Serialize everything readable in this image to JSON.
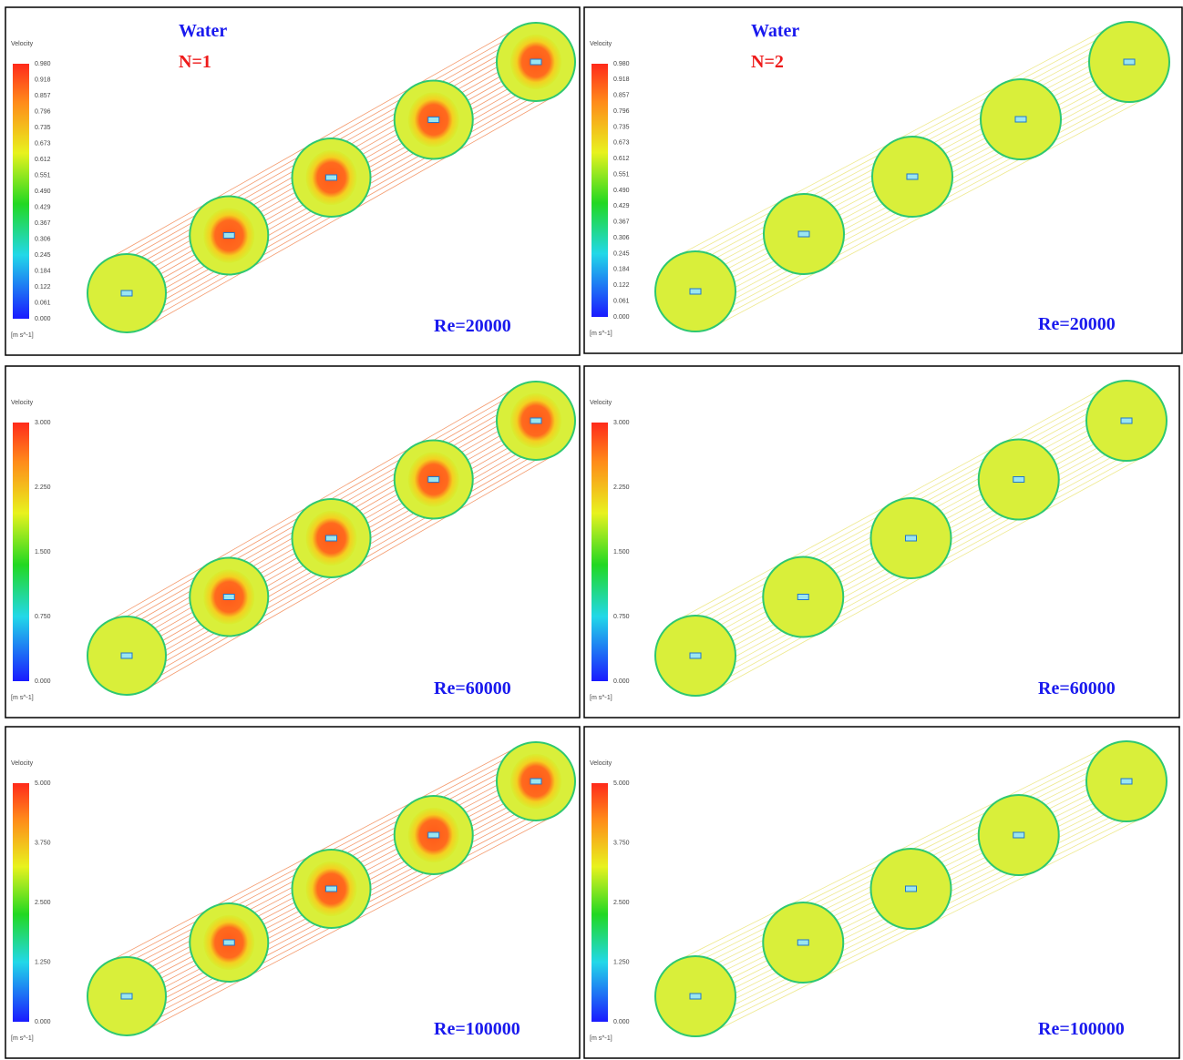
{
  "panels": [
    {
      "fluid": "Water",
      "n_label": "N=1",
      "legend_title": "Velocity",
      "legend_ticks": [
        "0.980",
        "0.918",
        "0.857",
        "0.796",
        "0.735",
        "0.673",
        "0.612",
        "0.551",
        "0.490",
        "0.429",
        "0.367",
        "0.306",
        "0.245",
        "0.184",
        "0.122",
        "0.061",
        "0.000"
      ],
      "legend_unit": "[m s^-1]",
      "re_label": "Re=20000"
    },
    {
      "fluid": "Water",
      "n_label": "N=2",
      "legend_title": "Velocity",
      "legend_ticks": [
        "0.980",
        "0.918",
        "0.857",
        "0.796",
        "0.735",
        "0.673",
        "0.612",
        "0.551",
        "0.490",
        "0.429",
        "0.367",
        "0.306",
        "0.245",
        "0.184",
        "0.122",
        "0.061",
        "0.000"
      ],
      "legend_unit": "[m s^-1]",
      "re_label": "Re=20000"
    },
    {
      "legend_title": "Velocity",
      "legend_ticks": [
        "3.000",
        "2.250",
        "1.500",
        "0.750",
        "0.000"
      ],
      "legend_unit": "[m s^-1]",
      "re_label": "Re=60000"
    },
    {
      "legend_title": "Velocity",
      "legend_ticks": [
        "3.000",
        "2.250",
        "1.500",
        "0.750",
        "0.000"
      ],
      "legend_unit": "[m s^-1]",
      "re_label": "Re=60000"
    },
    {
      "legend_title": "Velocity",
      "legend_ticks": [
        "5.000",
        "3.750",
        "2.500",
        "1.250",
        "0.000"
      ],
      "legend_unit": "[m s^-1]",
      "re_label": "Re=100000"
    },
    {
      "legend_title": "Velocity",
      "legend_ticks": [
        "5.000",
        "3.750",
        "2.500",
        "1.250",
        "0.000"
      ],
      "legend_unit": "[m s^-1]",
      "re_label": "Re=100000"
    }
  ]
}
